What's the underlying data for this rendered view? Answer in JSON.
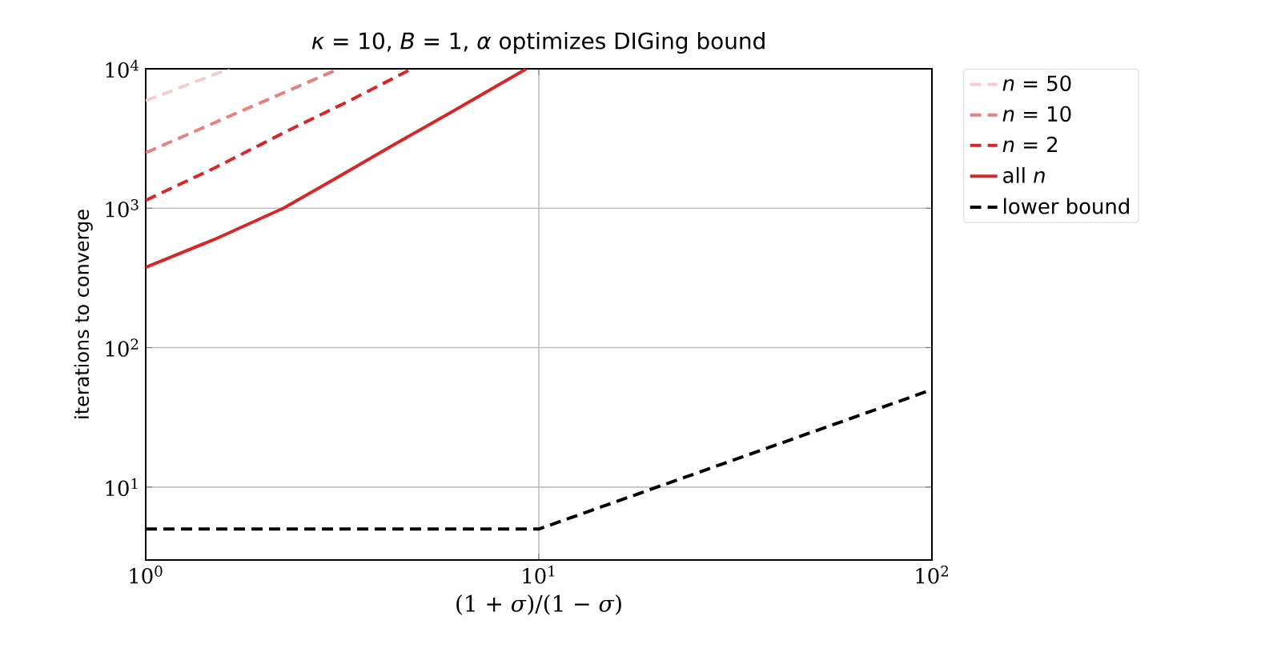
{
  "chart_data": {
    "type": "line",
    "title": "*κ* = 10,  *B* = 1,  *α* optimizes DIGing bound",
    "xlabel": "(1 + *σ*)/(1 − *σ*)",
    "ylabel": "iterations to converge",
    "log": "xy",
    "grid": true,
    "legend": "right",
    "marker": "none",
    "xlim": [
      1,
      100
    ],
    "ylim": [
      3,
      10000
    ],
    "xticks": [
      {
        "value": 1,
        "label": "10$^{0}$"
      },
      {
        "value": 10,
        "label": "10$^{1}$"
      },
      {
        "value": 100,
        "label": "10$^{2}$"
      }
    ],
    "yticks": [
      {
        "value": 10,
        "label": "10$^{1}$"
      },
      {
        "value": 100,
        "label": "10$^{2}$"
      },
      {
        "value": 1000,
        "label": "10$^{3}$"
      },
      {
        "value": 10000,
        "label": "10$^{4}$"
      }
    ],
    "series": [
      {
        "name": "*n* = 50",
        "color": "#f4cccc",
        "line_style": "dashed",
        "x": [
          1,
          1.63
        ],
        "values": [
          5900,
          10000
        ]
      },
      {
        "name": "*n* = 10",
        "color": "#e88080",
        "line_style": "dashed",
        "x": [
          1,
          1.7,
          3.1
        ],
        "values": [
          2500,
          4800,
          10000
        ]
      },
      {
        "name": "*n* = 2",
        "color": "#d62728",
        "line_style": "dashed",
        "x": [
          1,
          1.5,
          2.3,
          3.3,
          4.75
        ],
        "values": [
          1140,
          1950,
          3600,
          5900,
          10000
        ]
      },
      {
        "name": "all *n*",
        "color": "#d62728",
        "line_style": "solid",
        "x": [
          1,
          1.5,
          2.24,
          3,
          4.3,
          6,
          9.3
        ],
        "values": [
          377,
          600,
          1000,
          1600,
          2880,
          4900,
          10000
        ]
      },
      {
        "name": "lower bound",
        "color": "#000000",
        "line_style": "dashed",
        "x": [
          1,
          10,
          100
        ],
        "values": [
          5,
          5,
          50
        ]
      }
    ]
  }
}
